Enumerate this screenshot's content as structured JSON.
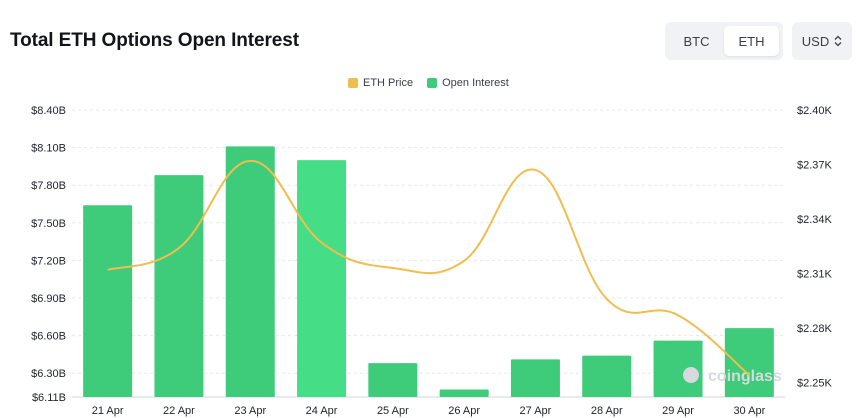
{
  "header": {
    "title": "Total ETH Options Open Interest",
    "toggle": [
      "BTC",
      "ETH"
    ],
    "toggle_active": "ETH",
    "currency": "USD"
  },
  "legend": [
    {
      "label": "ETH Price",
      "color": "#f0bd4f"
    },
    {
      "label": "Open Interest",
      "color": "#3ecb7a"
    }
  ],
  "watermark": "coinglass",
  "chart_data": {
    "type": "bar",
    "categories": [
      "21 Apr",
      "22 Apr",
      "23 Apr",
      "24 Apr",
      "25 Apr",
      "26 Apr",
      "27 Apr",
      "28 Apr",
      "29 Apr",
      "30 Apr"
    ],
    "series": [
      {
        "name": "Open Interest",
        "type": "bar",
        "axis": "left",
        "values": [
          7.64,
          7.88,
          8.11,
          8.0,
          6.38,
          6.17,
          6.41,
          6.44,
          6.56,
          6.66
        ]
      },
      {
        "name": "ETH Price",
        "type": "line",
        "axis": "right",
        "values": [
          2.312,
          2.324,
          2.372,
          2.327,
          2.313,
          2.317,
          2.367,
          2.296,
          2.287,
          2.254
        ]
      }
    ],
    "y_left": {
      "ticks": [
        "$6.11B",
        "$6.30B",
        "$6.60B",
        "$6.90B",
        "$7.20B",
        "$7.50B",
        "$7.80B",
        "$8.10B",
        "$8.40B"
      ],
      "tick_values": [
        6.11,
        6.3,
        6.6,
        6.9,
        7.2,
        7.5,
        7.8,
        8.1,
        8.4
      ],
      "ylim": [
        6.11,
        8.4
      ],
      "unit": "B"
    },
    "y_right": {
      "ticks": [
        "$2.25K",
        "$2.28K",
        "$2.31K",
        "$2.34K",
        "$2.37K",
        "$2.40K"
      ],
      "tick_values": [
        2.25,
        2.28,
        2.31,
        2.34,
        2.37,
        2.4
      ],
      "ylim": [
        2.242,
        2.4
      ],
      "unit": "K"
    },
    "colors": {
      "bars": "#3ecb7a",
      "bars_highlight": "#45de86",
      "line": "#f0bd4f",
      "grid": "#e6e8eb"
    },
    "grid": true,
    "legend_position": "top-center"
  }
}
